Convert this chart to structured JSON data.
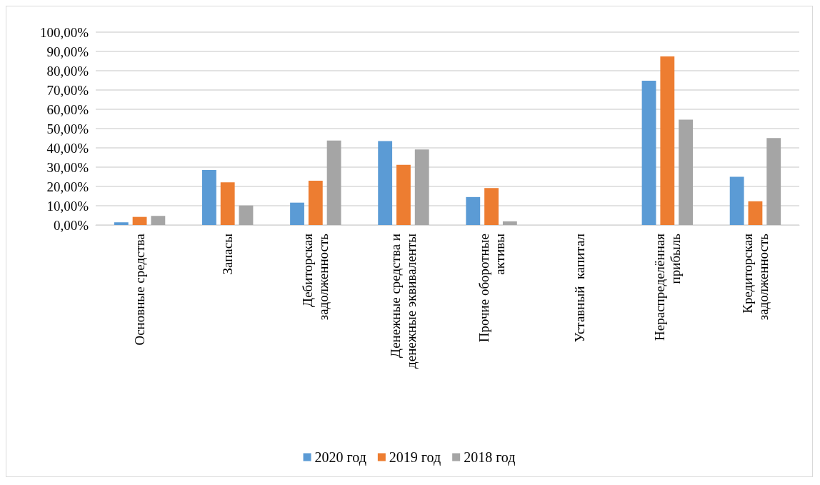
{
  "chart_data": {
    "type": "bar",
    "categories": [
      "Основные средства",
      "Запасы",
      "Дебиторская\nзадолженность",
      "Денежные средства и\nденежные эквиваленты",
      "Прочие оборотные\nактивы",
      "Уставный  капитал",
      "Нераспределённая\nприбыль",
      "Кредиторская\nзадолженность"
    ],
    "series": [
      {
        "name": "2020 год",
        "color": "#5b9bd5",
        "values": [
          1.4,
          28.5,
          11.6,
          43.5,
          14.5,
          0,
          74.8,
          25.0
        ]
      },
      {
        "name": "2019 год",
        "color": "#ed7d31",
        "values": [
          4.2,
          22.1,
          23.0,
          31.2,
          19.2,
          0,
          87.4,
          12.3
        ]
      },
      {
        "name": "2018 год",
        "color": "#a5a5a5",
        "values": [
          4.7,
          10.1,
          43.8,
          39.2,
          1.9,
          0,
          54.6,
          45.1
        ]
      }
    ],
    "ylim": [
      0,
      100
    ],
    "yticks": [
      {
        "value": 0,
        "label": "0,00%"
      },
      {
        "value": 10,
        "label": "10,00%"
      },
      {
        "value": 20,
        "label": "20,00%"
      },
      {
        "value": 30,
        "label": "30,00%"
      },
      {
        "value": 40,
        "label": "40,00%"
      },
      {
        "value": 50,
        "label": "50,00%"
      },
      {
        "value": 60,
        "label": "60,00%"
      },
      {
        "value": 70,
        "label": "70,00%"
      },
      {
        "value": 80,
        "label": "80,00%"
      },
      {
        "value": 90,
        "label": "90,00%"
      },
      {
        "value": 100,
        "label": "100,00%"
      }
    ],
    "grid": "y",
    "legend": "bottom"
  }
}
